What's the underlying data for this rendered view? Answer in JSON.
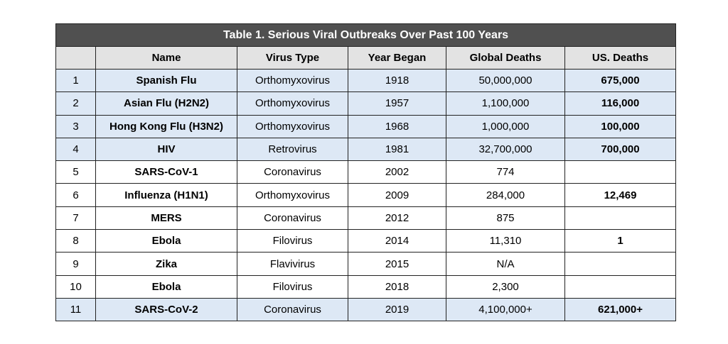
{
  "table": {
    "caption": "Table 1. Serious Viral Outbreaks Over Past 100 Years",
    "headers": [
      "",
      "Name",
      "Virus Type",
      "Year Began",
      "Global Deaths",
      "US. Deaths"
    ],
    "rows": [
      {
        "no": "1",
        "name": "Spanish Flu",
        "virus_type": "Orthomyxovirus",
        "year": "1918",
        "global_deaths": "50,000,000",
        "us_deaths": "675,000",
        "highlighted": true
      },
      {
        "no": "2",
        "name": "Asian Flu (H2N2)",
        "virus_type": "Orthomyxovirus",
        "year": "1957",
        "global_deaths": "1,100,000",
        "us_deaths": "116,000",
        "highlighted": true
      },
      {
        "no": "3",
        "name": "Hong Kong Flu (H3N2)",
        "virus_type": "Orthomyxovirus",
        "year": "1968",
        "global_deaths": "1,000,000",
        "us_deaths": "100,000",
        "highlighted": true
      },
      {
        "no": "4",
        "name": "HIV",
        "virus_type": "Retrovirus",
        "year": "1981",
        "global_deaths": "32,700,000",
        "us_deaths": "700,000",
        "highlighted": true
      },
      {
        "no": "5",
        "name": "SARS-CoV-1",
        "virus_type": "Coronavirus",
        "year": "2002",
        "global_deaths": "774",
        "us_deaths": "",
        "highlighted": false
      },
      {
        "no": "6",
        "name": "Influenza (H1N1)",
        "virus_type": "Orthomyxovirus",
        "year": "2009",
        "global_deaths": "284,000",
        "us_deaths": "12,469",
        "highlighted": false
      },
      {
        "no": "7",
        "name": "MERS",
        "virus_type": "Coronavirus",
        "year": "2012",
        "global_deaths": "875",
        "us_deaths": "",
        "highlighted": false
      },
      {
        "no": "8",
        "name": "Ebola",
        "virus_type": "Filovirus",
        "year": "2014",
        "global_deaths": "11,310",
        "us_deaths": "1",
        "highlighted": false
      },
      {
        "no": "9",
        "name": "Zika",
        "virus_type": "Flavivirus",
        "year": "2015",
        "global_deaths": "N/A",
        "us_deaths": "",
        "highlighted": false
      },
      {
        "no": "10",
        "name": "Ebola",
        "virus_type": "Filovirus",
        "year": "2018",
        "global_deaths": "2,300",
        "us_deaths": "",
        "highlighted": false
      },
      {
        "no": "11",
        "name": "SARS-CoV-2",
        "virus_type": "Coronavirus",
        "year": "2019",
        "global_deaths": "4,100,000+",
        "us_deaths": "621,000+",
        "highlighted": true
      }
    ]
  },
  "colors": {
    "caption_bg": "#505050",
    "header_bg": "#e3e3e3",
    "highlight_bg": "#dde8f5"
  }
}
